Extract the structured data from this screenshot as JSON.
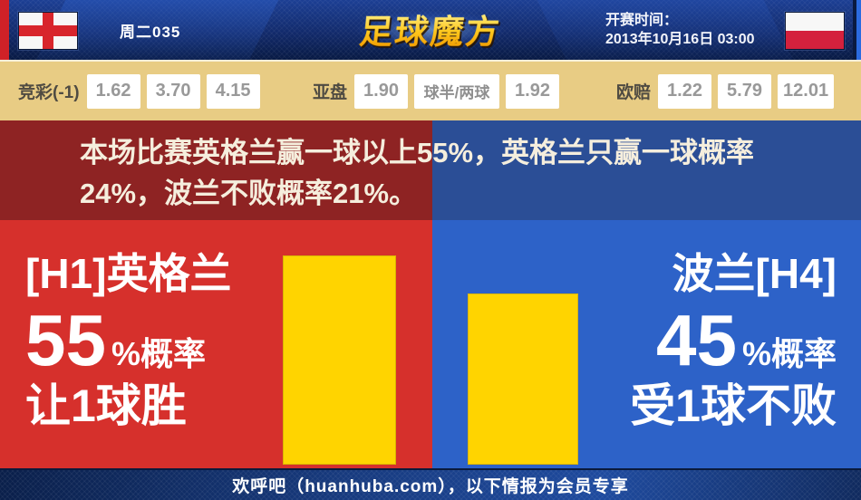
{
  "header": {
    "match_number": "周二035",
    "logo_text": "足球魔方",
    "kickoff_label": "开赛时间：",
    "kickoff_time": "2013年10月16日 03:00"
  },
  "odds_bar": {
    "jingcai": {
      "label": "竞彩(-1)",
      "values": [
        "1.62",
        "3.70",
        "4.15"
      ]
    },
    "yapan": {
      "label": "亚盘",
      "values": [
        "1.90",
        "球半/两球",
        "1.92"
      ]
    },
    "oupei": {
      "label": "欧赔",
      "values": [
        "1.22",
        "5.79",
        "12.01"
      ]
    }
  },
  "analysis": {
    "line1": "本场比赛英格兰赢一球以上55%，英格兰只赢一球概率",
    "line2": "24%，波兰不败概率21%。"
  },
  "panels": {
    "home": {
      "title": "[H1]英格兰",
      "percent": "55",
      "percent_suffix": "%概率",
      "outcome": "让1球胜",
      "probability": 55
    },
    "away": {
      "title": "波兰[H4]",
      "percent": "45",
      "percent_suffix": "%概率",
      "outcome": "受1球不败",
      "probability": 45
    }
  },
  "footer": {
    "text": "欢呼吧（huanhuba.com），以下情报为会员专享"
  },
  "colors": {
    "home_red": "#d6302c",
    "away_blue": "#2d62c8",
    "band_red": "#8e2323",
    "band_blue": "#2b4e96",
    "bar_yellow": "#ffd400",
    "odds_bg": "#e8cc84",
    "header_navy": "#122a6b",
    "edge_red": "#cf2127",
    "edge_blue": "#2b6be0"
  }
}
